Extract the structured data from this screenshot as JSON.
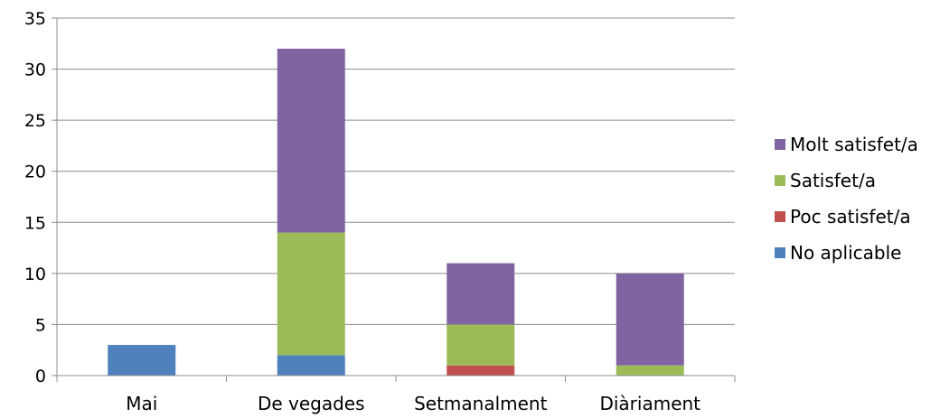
{
  "chart_data": {
    "type": "bar",
    "stacked": true,
    "title": "",
    "xlabel": "",
    "ylabel": "",
    "categories": [
      "Mai",
      "De vegades",
      "Setmanalment",
      "Diàriament"
    ],
    "ylim": [
      0,
      35
    ],
    "yticks": [
      0,
      5,
      10,
      15,
      20,
      25,
      30,
      35
    ],
    "grid": true,
    "legend_position": "right",
    "series": [
      {
        "name": "No aplicable",
        "values": [
          3,
          2,
          0,
          0
        ],
        "color": "#4f81bd"
      },
      {
        "name": "Poc satisfet/a",
        "values": [
          0,
          0,
          1,
          0
        ],
        "color": "#c0504d"
      },
      {
        "name": "Satisfet/a",
        "values": [
          0,
          12,
          4,
          1
        ],
        "color": "#9bbb59"
      },
      {
        "name": "Molt satisfet/a",
        "values": [
          0,
          18,
          6,
          9
        ],
        "color": "#8064a2"
      }
    ]
  }
}
